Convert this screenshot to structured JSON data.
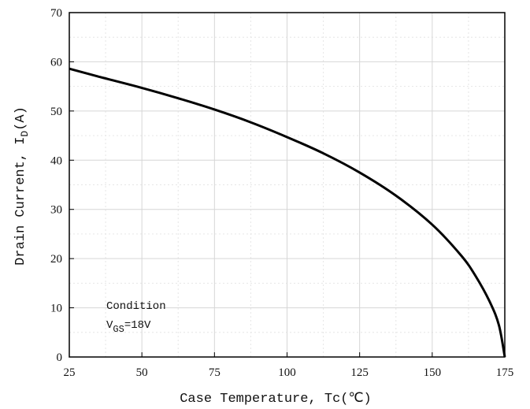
{
  "chart_data": {
    "type": "line",
    "xlabel": "Case Temperature, Tc(℃)",
    "ylabel": "Drain Current, I",
    "ylabel_sub": "D",
    "ylabel_suffix": "(A)",
    "xlim": [
      25,
      175
    ],
    "ylim": [
      0,
      70
    ],
    "xticks": [
      25,
      50,
      75,
      100,
      125,
      150,
      175
    ],
    "yticks": [
      0,
      10,
      20,
      30,
      40,
      50,
      60,
      70
    ],
    "grid": true,
    "annotation": {
      "line1": "Condition",
      "line2_main": "V",
      "line2_sub": "GS",
      "line2_suffix": "=18V"
    },
    "series": [
      {
        "color": "#000000",
        "x": [
          25,
          35,
          50,
          62.5,
          75,
          87.5,
          100,
          112.5,
          125,
          137.5,
          150,
          160,
          165,
          170,
          173,
          175
        ],
        "y": [
          58.6,
          57.0,
          54.7,
          52.6,
          50.3,
          47.7,
          44.7,
          41.4,
          37.5,
          32.8,
          26.9,
          20.6,
          16.4,
          11.0,
          6.4,
          0
        ]
      }
    ]
  }
}
